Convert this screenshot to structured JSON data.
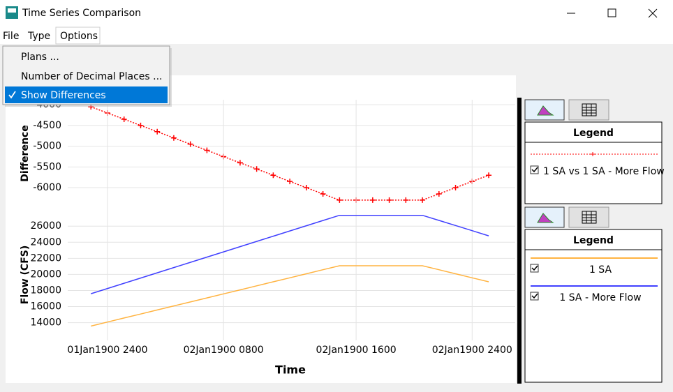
{
  "window": {
    "title": "Time Series Comparison"
  },
  "menu": [
    "File",
    "Type",
    "Options"
  ],
  "dropdown": [
    "Plans ...",
    "Number of Decimal Places ...",
    "Show Differences"
  ],
  "x_axis_label": "Time",
  "chart_data": [
    {
      "type": "line",
      "y_axis_label": "Difference",
      "legend_title": "Legend",
      "x": [
        0,
        1,
        2,
        3,
        4,
        5,
        6,
        7,
        8,
        9,
        10,
        11,
        12,
        13,
        14,
        15,
        16,
        17,
        18,
        19,
        20,
        21,
        22,
        23,
        24
      ],
      "xlim": [
        -1.4,
        25.6
      ],
      "ylim": [
        -6470,
        -3880
      ],
      "yticks": [
        -4000,
        -4500,
        -5000,
        -5500,
        -6000
      ],
      "grid": true,
      "series": [
        {
          "name": "1 SA vs 1 SA - More Flow",
          "color": "#ff0000",
          "line_style": "dotted",
          "marker": "+",
          "values": [
            -4050,
            -4200,
            -4350,
            -4500,
            -4650,
            -4800,
            -4950,
            -5100,
            -5250,
            -5400,
            -5550,
            -5700,
            -5850,
            -6000,
            -6150,
            -6300,
            -6300,
            -6300,
            -6300,
            -6300,
            -6300,
            -6150,
            -6000,
            -5850,
            -5700
          ]
        }
      ]
    },
    {
      "type": "line",
      "y_axis_label": "Flow (CFS)",
      "legend_title": "Legend",
      "x": [
        0,
        1,
        2,
        3,
        4,
        5,
        6,
        7,
        8,
        9,
        10,
        11,
        12,
        13,
        14,
        15,
        16,
        17,
        18,
        19,
        20,
        21,
        22,
        23,
        24
      ],
      "xlim": [
        -1.4,
        25.6
      ],
      "ylim": [
        11800,
        28100
      ],
      "xticks": [
        {
          "value": 1,
          "label": "01Jan1900 2400"
        },
        {
          "value": 8,
          "label": "02Jan1900 0800"
        },
        {
          "value": 16,
          "label": "02Jan1900 1600"
        },
        {
          "value": 23,
          "label": "02Jan1900 2400"
        }
      ],
      "yticks": [
        14000,
        16000,
        18000,
        20000,
        22000,
        24000,
        26000
      ],
      "grid": true,
      "series": [
        {
          "name": "1 SA",
          "color": "#ffb340",
          "line_style": "solid",
          "values": [
            13580,
            14080,
            14580,
            15080,
            15580,
            16080,
            16580,
            17080,
            17580,
            18080,
            18580,
            19080,
            19580,
            20080,
            20580,
            21080,
            21080,
            21080,
            21080,
            21080,
            21080,
            20580,
            20080,
            19580,
            19080
          ]
        },
        {
          "name": "1 SA - More Flow",
          "color": "#4040ff",
          "line_style": "solid",
          "values": [
            17600,
            18250,
            18900,
            19550,
            20200,
            20850,
            21500,
            22150,
            22800,
            23450,
            24100,
            24750,
            25400,
            26050,
            26700,
            27350,
            27350,
            27350,
            27350,
            27350,
            27350,
            26710,
            26080,
            25440,
            24800
          ]
        }
      ]
    }
  ]
}
